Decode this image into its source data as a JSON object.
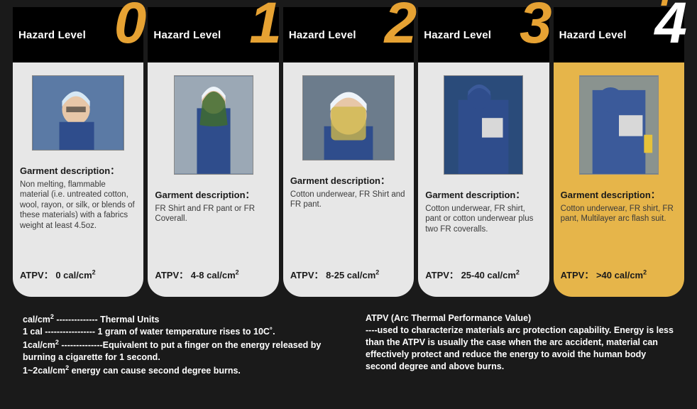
{
  "header_prefix": "Hazard Level",
  "desc_label": "Garment description：",
  "atpv_prefix": "ATPV：",
  "atpv_unit": "cal/cm²",
  "colors": {
    "background": "#1a1a1a",
    "header_band": "#000000",
    "num_orange": "#e6a233",
    "num_white": "#ffffff",
    "card_grey": "#e7e7e7",
    "card_gold": "#e6b54a",
    "photo_bg": "#2a4b7a",
    "hardhat": "#d6e8f5",
    "faceshield": "#cfb84a",
    "suit_blue": "#2f4d8c",
    "text_white": "#ffffff",
    "text_dark": "#1a1a1a",
    "text_body": "#3a3a3a"
  },
  "levels": [
    {
      "num": "0",
      "desc": "Non melting, flammable material (i.e. untreated cotton, wool, rayon, or silk, or blends of these materials) with a fabrics weight at least 4.5oz.",
      "atpv": "0 cal/cm²"
    },
    {
      "num": "1",
      "desc": "FR Shirt and FR pant or FR Coverall.",
      "atpv": "4-8 cal/cm²"
    },
    {
      "num": "2",
      "desc": "Cotton underwear, FR Shirt and FR pant.",
      "atpv": "8-25 cal/cm²"
    },
    {
      "num": "3",
      "desc": "Cotton underwear, FR shirt, pant or cotton underwear plus two FR coveralls.",
      "atpv": "25-40 cal/cm²"
    },
    {
      "num": "4",
      "desc": "Cotton underwear, FR shirt, FR pant, Multilayer arc flash suit.",
      "atpv": ">40 cal/cm²"
    }
  ],
  "footer_left": {
    "l1": "cal/cm² -------------- Thermal Units",
    "l2": "1 cal ----------------- 1 gram of water temperature rises to 10C˚.",
    "l3": "1cal/cm² --------------Equivalent to put a finger on the energy released by burning a cigarette for 1 second.",
    "l4": "1~2cal/cm²  energy can cause second degree burns."
  },
  "footer_right": {
    "l1": "ATPV (Arc Thermal Performance Value)",
    "l2": "----used to characterize materials arc protection capability. Energy is less than the ATPV is usually the case when the arc accident, material can effectively protect and reduce the energy to avoid the human body second degree and above burns."
  }
}
